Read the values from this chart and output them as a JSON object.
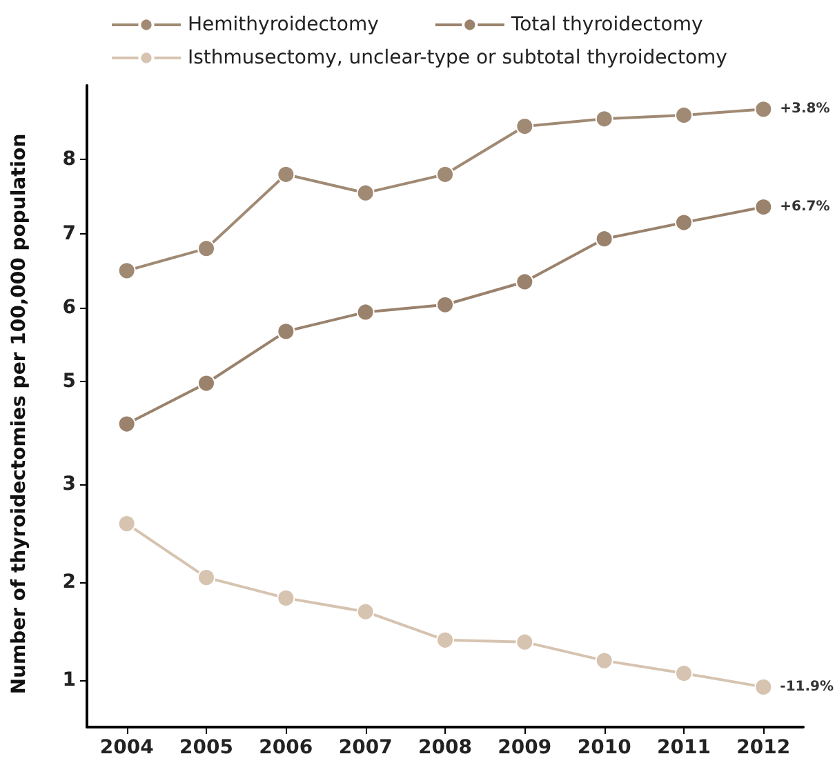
{
  "chart_data": [
    {
      "type": "line",
      "categories": [
        "2004",
        "2005",
        "2006",
        "2007",
        "2008",
        "2009",
        "2010",
        "2011",
        "2012"
      ],
      "ylabel": "Number of thyroidectomies per 100,000 population",
      "ylim": [
        4.1,
        9.0
      ],
      "yticks": [
        5,
        6,
        7,
        8
      ],
      "tick_labels": "y",
      "legend": "top",
      "marker": "circle",
      "grid": false,
      "series": [
        {
          "name": "Hemithyroidectomy",
          "color": "#a08a74",
          "values": [
            6.5,
            6.8,
            7.8,
            7.55,
            7.8,
            8.45,
            8.55,
            8.6,
            8.68
          ]
        },
        {
          "name": "Total thyroidectomy",
          "color": "#9a826c",
          "values": [
            4.43,
            4.98,
            5.68,
            5.94,
            6.04,
            6.35,
            6.93,
            7.15,
            7.36
          ]
        }
      ],
      "annotations": [
        {
          "text": "+3.8%",
          "x": "2012",
          "y": 8.68
        },
        {
          "text": "+6.7%",
          "x": "2012",
          "y": 7.36
        }
      ]
    },
    {
      "type": "line",
      "categories": [
        "2004",
        "2005",
        "2006",
        "2007",
        "2008",
        "2009",
        "2010",
        "2011",
        "2012"
      ],
      "ylim": [
        0.52,
        3.37
      ],
      "yticks": [
        1,
        2,
        3
      ],
      "legend": "top",
      "marker": "circle",
      "grid": false,
      "series": [
        {
          "name": "Isthmusectomy, unclear-type or subtotal thyroidectomy",
          "color": "#d6c3b0",
          "values": [
            2.6,
            2.05,
            1.84,
            1.7,
            1.41,
            1.39,
            1.2,
            1.07,
            0.93
          ]
        }
      ],
      "annotations": [
        {
          "text": "-11.9%",
          "x": "2012",
          "y": 0.93
        }
      ]
    }
  ]
}
